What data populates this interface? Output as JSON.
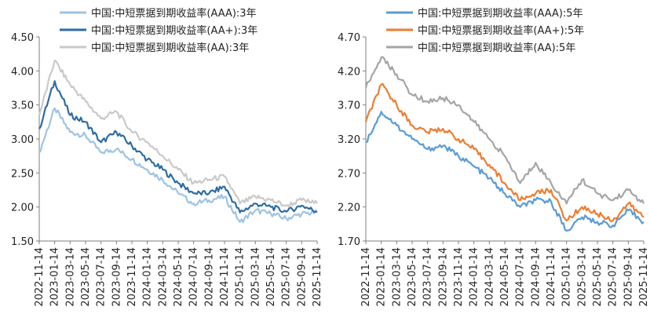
{
  "chart_data": [
    {
      "type": "line",
      "ylim": [
        1.5,
        4.5
      ],
      "yticks": [
        "4.50",
        "4.00",
        "3.50",
        "3.00",
        "2.50",
        "2.00",
        "1.50"
      ],
      "categories": [
        "2022-11-14",
        "2023-01-14",
        "2023-03-14",
        "2023-05-14",
        "2023-07-14",
        "2023-09-14",
        "2023-11-14",
        "2024-01-14",
        "2024-03-14",
        "2024-05-14",
        "2024-07-14",
        "2024-09-14",
        "2024-11-14",
        "2025-01-14",
        "2025-03-14",
        "2025-05-14",
        "2025-07-14",
        "2025-09-14",
        "2025-11-14"
      ],
      "series": [
        {
          "name": "中国:中短票据到期收益率(AAA):3年",
          "color": "#9dc3e6",
          "values": [
            2.8,
            3.45,
            3.1,
            3.05,
            2.8,
            2.85,
            2.7,
            2.55,
            2.4,
            2.2,
            2.05,
            2.1,
            2.15,
            1.78,
            1.95,
            1.9,
            1.83,
            1.9,
            1.92
          ]
        },
        {
          "name": "中国:中短票据到期收益率(AA+):3年",
          "color": "#2e6ca4",
          "values": [
            3.15,
            3.85,
            3.35,
            3.25,
            2.95,
            3.1,
            2.9,
            2.7,
            2.55,
            2.35,
            2.2,
            2.2,
            2.3,
            1.92,
            2.05,
            2.0,
            1.93,
            2.02,
            1.93
          ]
        },
        {
          "name": "中国:中短票据到期收益率(AA):3年",
          "color": "#c9c9c9",
          "values": [
            3.35,
            4.15,
            3.8,
            3.55,
            3.3,
            3.4,
            3.1,
            2.95,
            2.75,
            2.55,
            2.35,
            2.4,
            2.45,
            2.05,
            2.15,
            2.1,
            2.02,
            2.1,
            2.05
          ]
        }
      ]
    },
    {
      "type": "line",
      "ylim": [
        1.7,
        4.7
      ],
      "yticks": [
        "4.70",
        "4.20",
        "3.70",
        "3.20",
        "2.70",
        "2.20",
        "1.70"
      ],
      "categories": [
        "2022-11-14",
        "2023-01-14",
        "2023-03-14",
        "2023-05-14",
        "2023-07-14",
        "2023-09-14",
        "2023-11-14",
        "2024-01-14",
        "2024-03-14",
        "2024-05-14",
        "2024-07-14",
        "2024-09-14",
        "2024-11-14",
        "2025-01-14",
        "2025-03-14",
        "2025-05-14",
        "2025-07-14",
        "2025-09-14",
        "2025-11-14"
      ],
      "series": [
        {
          "name": "中国:中短票据到期收益率(AAA):5年",
          "color": "#5b9bd5",
          "values": [
            3.15,
            3.6,
            3.4,
            3.2,
            3.05,
            3.1,
            2.95,
            2.8,
            2.62,
            2.4,
            2.2,
            2.3,
            2.28,
            1.85,
            2.05,
            1.98,
            1.93,
            2.15,
            1.98
          ]
        },
        {
          "name": "中国:中短票据到期收益率(AA+):5年",
          "color": "#ed7d31",
          "values": [
            3.45,
            4.0,
            3.7,
            3.4,
            3.3,
            3.35,
            3.2,
            3.05,
            2.82,
            2.55,
            2.3,
            2.4,
            2.45,
            2.0,
            2.2,
            2.1,
            2.0,
            2.25,
            2.05
          ]
        },
        {
          "name": "中国:中短票据到期收益率(AA):5年",
          "color": "#a5a5a5",
          "values": [
            3.95,
            4.4,
            4.15,
            3.85,
            3.75,
            3.8,
            3.7,
            3.45,
            3.2,
            2.95,
            2.55,
            2.85,
            2.55,
            2.25,
            2.6,
            2.4,
            2.3,
            2.45,
            2.25
          ]
        }
      ]
    }
  ]
}
